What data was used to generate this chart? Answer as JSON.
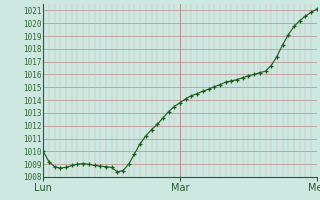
{
  "background_color": "#cce8e0",
  "grid_major_color": "#bb8888",
  "grid_minor_color": "#ccaaaa",
  "line_color": "#1a5c1a",
  "marker_color": "#1a5c1a",
  "tick_label_color": "#336633",
  "axis_color": "#2a5c2a",
  "ylim": [
    1008,
    1021.5
  ],
  "ytick_min": 1008,
  "ytick_max": 1021,
  "xtick_positions": [
    0,
    24,
    48
  ],
  "xtick_labels": [
    "Lun",
    "Mar",
    "Mer"
  ],
  "num_hours": 49,
  "data_x": [
    0,
    1,
    2,
    3,
    4,
    5,
    6,
    7,
    8,
    9,
    10,
    11,
    12,
    13,
    14,
    15,
    16,
    17,
    18,
    19,
    20,
    21,
    22,
    23,
    24,
    25,
    26,
    27,
    28,
    29,
    30,
    31,
    32,
    33,
    34,
    35,
    36,
    37,
    38,
    39,
    40,
    41,
    42,
    43,
    44,
    45,
    46,
    47,
    48
  ],
  "data_y": [
    1010.0,
    1009.2,
    1008.8,
    1008.7,
    1008.75,
    1008.9,
    1009.0,
    1009.05,
    1009.0,
    1008.9,
    1008.85,
    1008.8,
    1008.75,
    1008.4,
    1008.5,
    1009.0,
    1009.8,
    1010.6,
    1011.2,
    1011.7,
    1012.1,
    1012.6,
    1013.1,
    1013.5,
    1013.8,
    1014.1,
    1014.35,
    1014.5,
    1014.7,
    1014.85,
    1015.05,
    1015.2,
    1015.4,
    1015.5,
    1015.6,
    1015.75,
    1015.9,
    1016.0,
    1016.15,
    1016.25,
    1016.7,
    1017.4,
    1018.3,
    1019.1,
    1019.75,
    1020.2,
    1020.55,
    1020.85,
    1021.1
  ]
}
